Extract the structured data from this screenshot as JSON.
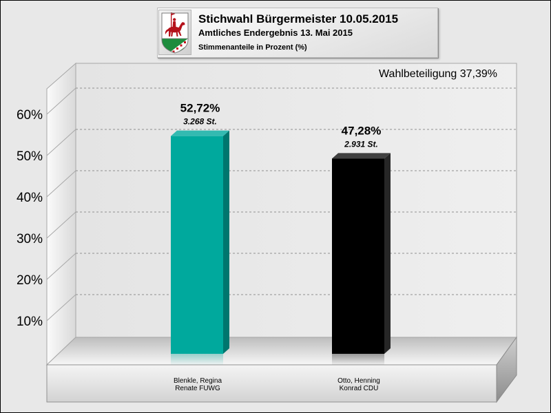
{
  "page": {
    "background_color": "#e8e8e8"
  },
  "header": {
    "logo_icon": "coat-of-arms-icon"
  },
  "chart_data": {
    "type": "bar",
    "title": "Stichwahl Bürgermeister 10.05.2015",
    "subtitle": "Amtliches Endergebnis 13. Mai 2015",
    "caption": "Stimmenanteile in Prozent (%)",
    "annotation": "Wahlbeteiligung 37,39%",
    "categories": [
      [
        "Blenkle, Regina",
        "Renate FUWG"
      ],
      [
        "Otto, Henning",
        "Konrad CDU"
      ]
    ],
    "values": [
      52.72,
      47.28
    ],
    "value_labels": [
      "52,72%",
      "47,28%"
    ],
    "vote_labels": [
      "3.268 St.",
      "2.931 St."
    ],
    "bar_colors": [
      "#00a99d",
      "#000000"
    ],
    "yticks": [
      10,
      20,
      30,
      40,
      50,
      60
    ],
    "ytick_labels": [
      "10%",
      "20%",
      "30%",
      "40%",
      "50%",
      "60%"
    ],
    "ylim": [
      0,
      66
    ],
    "grid": true
  }
}
